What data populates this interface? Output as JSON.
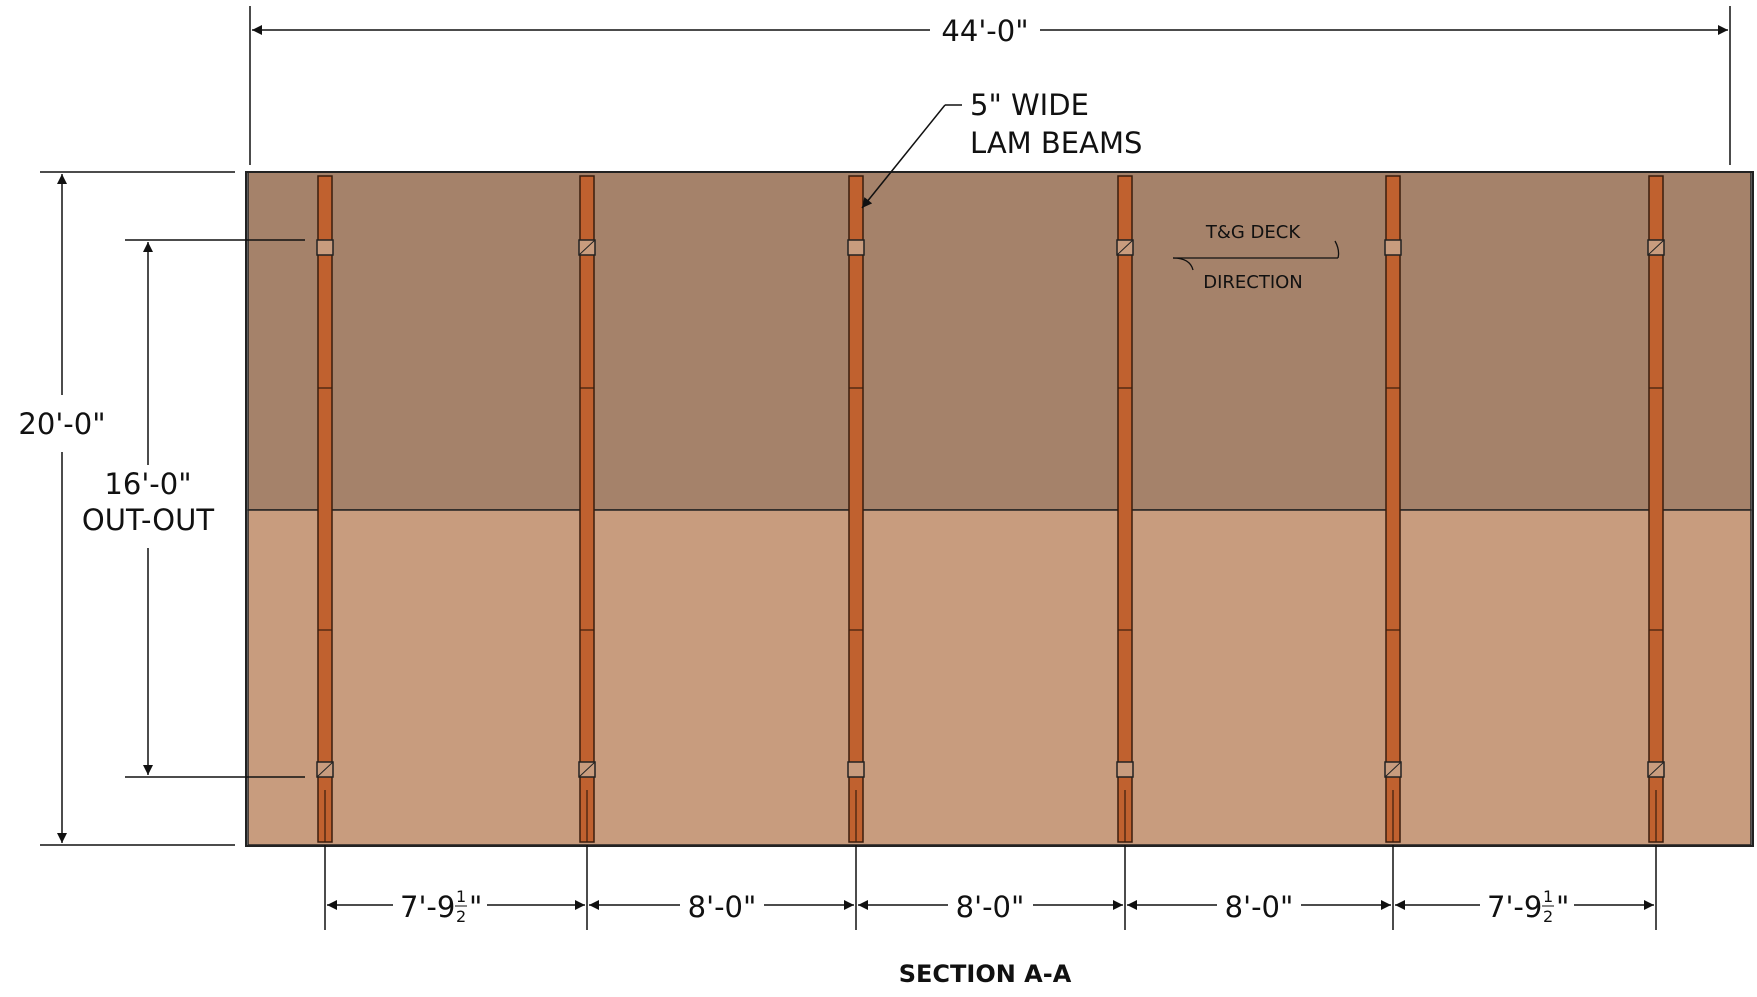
{
  "drawing": {
    "title": "SECTION A-A",
    "overall_width": "44'-0\"",
    "overall_depth": "20'-0\"",
    "post_span": {
      "value": "16'-0\"",
      "qualifier": "OUT-OUT"
    },
    "beam_note": {
      "line1": "5\" WIDE",
      "line2": "LAM BEAMS"
    },
    "deck_note": {
      "line1": "T&G DECK",
      "line2": "DIRECTION"
    },
    "bay_spacings": [
      {
        "whole": "7'-9",
        "num": "1",
        "den": "2",
        "suffix": "\""
      },
      {
        "whole": "8'-0\""
      },
      {
        "whole": "8'-0\""
      },
      {
        "whole": "8'-0\""
      },
      {
        "whole": "7'-9",
        "num": "1",
        "den": "2",
        "suffix": "\""
      }
    ],
    "colors": {
      "roof_upper": "#A5826A",
      "roof_lower": "#C89C7E",
      "beam": "#C0612F",
      "line": "#222222"
    }
  }
}
